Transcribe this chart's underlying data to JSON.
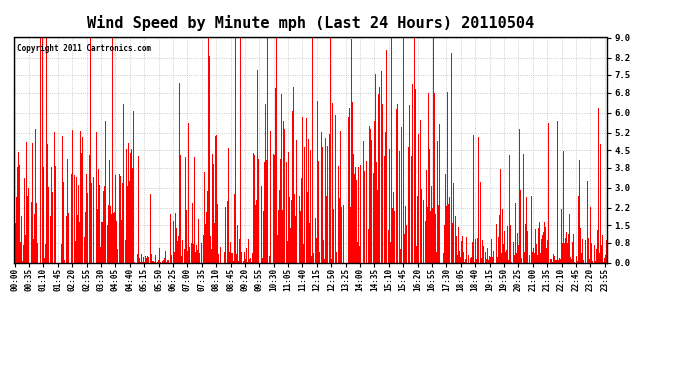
{
  "title": "Wind Speed by Minute mph (Last 24 Hours) 20110504",
  "copyright_text": "Copyright 2011 Cartronics.com",
  "bar_color": "#FF0000",
  "background_color": "#FFFFFF",
  "plot_bg_color": "#FFFFFF",
  "yticks": [
    0.0,
    0.8,
    1.5,
    2.2,
    3.0,
    3.8,
    4.5,
    5.2,
    6.0,
    6.8,
    7.5,
    8.2,
    9.0
  ],
  "ylim": [
    0.0,
    9.0
  ],
  "grid_color": "#BBBBBB",
  "title_fontsize": 11,
  "tick_fontsize": 5.5,
  "ytick_fontsize": 6.5,
  "copyright_fontsize": 5.5,
  "xtick_labels": [
    "00:00",
    "00:35",
    "01:10",
    "01:45",
    "02:20",
    "02:55",
    "03:30",
    "04:05",
    "04:40",
    "05:15",
    "05:50",
    "06:25",
    "07:00",
    "07:35",
    "08:10",
    "08:45",
    "09:20",
    "09:55",
    "10:30",
    "11:05",
    "11:40",
    "12:15",
    "12:50",
    "13:25",
    "14:00",
    "14:35",
    "15:10",
    "15:45",
    "16:20",
    "16:55",
    "17:30",
    "18:05",
    "18:40",
    "19:15",
    "19:50",
    "20:25",
    "21:00",
    "21:35",
    "22:10",
    "22:45",
    "23:20",
    "23:55"
  ]
}
